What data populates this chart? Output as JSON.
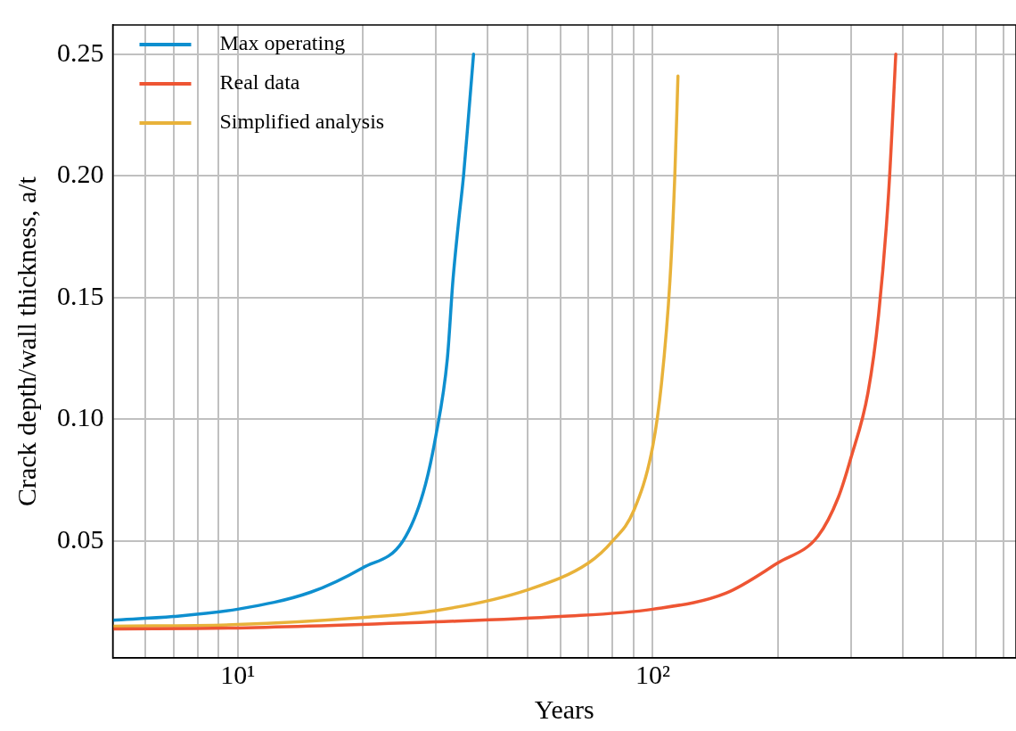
{
  "chart_data": {
    "type": "line",
    "xlabel": "Years",
    "ylabel": "Crack depth/wall thickness, a/t",
    "log": "x",
    "grid": true,
    "legend": "top left",
    "marker": "none",
    "line_style": "solid",
    "xlim": [
      5,
      750
    ],
    "ylim": [
      0.002,
      0.262
    ],
    "xticks": [
      {
        "value": 6,
        "label": null
      },
      {
        "value": 7,
        "label": null
      },
      {
        "value": 8,
        "label": null
      },
      {
        "value": 9,
        "label": null
      },
      {
        "value": 10,
        "label": "10¹"
      },
      {
        "value": 20,
        "label": null
      },
      {
        "value": 30,
        "label": null
      },
      {
        "value": 40,
        "label": null
      },
      {
        "value": 50,
        "label": null
      },
      {
        "value": 60,
        "label": null
      },
      {
        "value": 70,
        "label": null
      },
      {
        "value": 80,
        "label": null
      },
      {
        "value": 90,
        "label": null
      },
      {
        "value": 100,
        "label": "10²"
      },
      {
        "value": 200,
        "label": null
      },
      {
        "value": 300,
        "label": null
      },
      {
        "value": 400,
        "label": null
      },
      {
        "value": 500,
        "label": null
      },
      {
        "value": 600,
        "label": null
      },
      {
        "value": 700,
        "label": null
      }
    ],
    "yticks": [
      {
        "value": 0.05,
        "label": "0.05"
      },
      {
        "value": 0.1,
        "label": "0.10"
      },
      {
        "value": 0.15,
        "label": "0.15"
      },
      {
        "value": 0.2,
        "label": "0.20"
      },
      {
        "value": 0.25,
        "label": "0.25"
      }
    ],
    "series": [
      {
        "name": "Max operating",
        "color": "#0e8fcf",
        "x": [
          5,
          7,
          10,
          15,
          20,
          25,
          28,
          30,
          32,
          33,
          34,
          35,
          36,
          37
        ],
        "values": [
          0.0175,
          0.019,
          0.022,
          0.029,
          0.039,
          0.05,
          0.07,
          0.093,
          0.125,
          0.157,
          0.18,
          0.2,
          0.225,
          0.25
        ]
      },
      {
        "name": "Real data",
        "color": "#ee5533",
        "x": [
          5,
          10,
          30,
          60,
          100,
          150,
          200,
          250,
          280,
          300,
          330,
          350,
          370,
          385
        ],
        "values": [
          0.0139,
          0.0143,
          0.0168,
          0.019,
          0.022,
          0.0286,
          0.041,
          0.052,
          0.068,
          0.084,
          0.111,
          0.143,
          0.193,
          0.25
        ]
      },
      {
        "name": "Simplified analysis",
        "color": "#e8b23a",
        "x": [
          5,
          10,
          20,
          30,
          50,
          70,
          80,
          90,
          100,
          105,
          110,
          113,
          115
        ],
        "values": [
          0.015,
          0.0157,
          0.0186,
          0.0214,
          0.03,
          0.041,
          0.05,
          0.0625,
          0.089,
          0.115,
          0.157,
          0.2,
          0.241
        ]
      }
    ]
  }
}
